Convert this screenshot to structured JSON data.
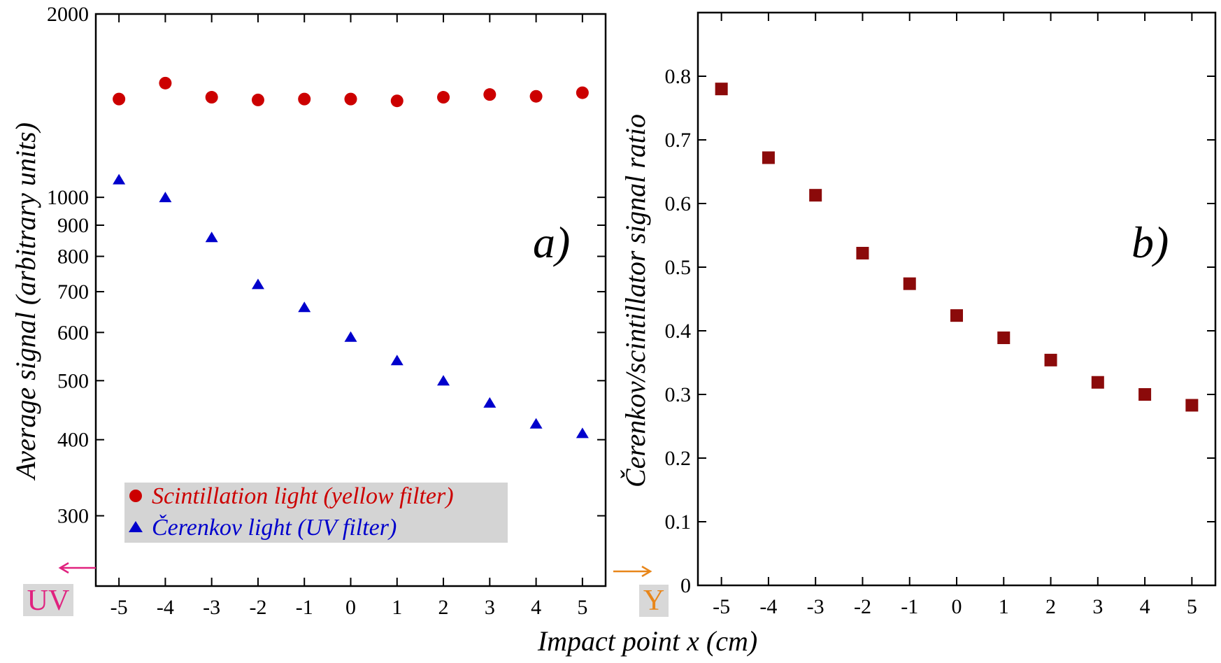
{
  "chart_data": [
    {
      "panel": "a)",
      "type": "scatter",
      "yscale": "log",
      "ylim": [
        230,
        2000
      ],
      "xlim": [
        -5.5,
        5.5
      ],
      "x": [
        -5,
        -4,
        -3,
        -2,
        -1,
        0,
        1,
        2,
        3,
        4,
        5
      ],
      "x_tick_labels": [
        "-5",
        "-4",
        "-3",
        "-2",
        "-1",
        "0",
        "1",
        "2",
        "3",
        "4",
        "5"
      ],
      "y_ticks": [
        300,
        400,
        500,
        600,
        700,
        800,
        900,
        1000,
        2000
      ],
      "y_tick_labels": [
        "300",
        "400",
        "500",
        "600",
        "700",
        "800",
        "900",
        "1000",
        "2000"
      ],
      "ylabel": "Average signal (arbitrary units)",
      "legend_placement": "bottom-left",
      "series": [
        {
          "name": "Scintillation light (yellow filter)",
          "marker": "circle",
          "color": "#cc0000",
          "values": [
            1450,
            1540,
            1460,
            1445,
            1450,
            1450,
            1440,
            1460,
            1475,
            1465,
            1485
          ]
        },
        {
          "name": "Čerenkov light (UV filter)",
          "marker": "triangle",
          "color": "#0000cc",
          "values": [
            1070,
            1000,
            860,
            720,
            660,
            590,
            540,
            500,
            460,
            425,
            410
          ]
        }
      ],
      "annotations": {
        "left_arrow_label": "UV",
        "right_arrow_label": "Y"
      },
      "annotation_colors": {
        "uv": "#e0227f",
        "y": "#e8861a",
        "label_bg": "#d8d8d8"
      }
    },
    {
      "panel": "b)",
      "type": "scatter",
      "ylim": [
        0,
        0.9
      ],
      "xlim": [
        -5.5,
        5.5
      ],
      "x": [
        -5,
        -4,
        -3,
        -2,
        -1,
        0,
        1,
        2,
        3,
        4,
        5
      ],
      "x_tick_labels": [
        "-5",
        "-4",
        "-3",
        "-2",
        "-1",
        "0",
        "1",
        "2",
        "3",
        "4",
        "5"
      ],
      "y_ticks": [
        0,
        0.1,
        0.2,
        0.3,
        0.4,
        0.5,
        0.6,
        0.7,
        0.8
      ],
      "y_tick_labels": [
        "0",
        "0.1",
        "0.2",
        "0.3",
        "0.4",
        "0.5",
        "0.6",
        "0.7",
        "0.8"
      ],
      "ylabel": "Čerenkov/scintillator signal ratio",
      "series": [
        {
          "marker": "square",
          "color": "#8b0a0a",
          "values": [
            0.78,
            0.672,
            0.613,
            0.522,
            0.474,
            0.424,
            0.389,
            0.354,
            0.319,
            0.3,
            0.283
          ]
        }
      ]
    }
  ],
  "shared_xlabel": "Impact point x (cm)",
  "legend_bg": "#d4d4d4"
}
